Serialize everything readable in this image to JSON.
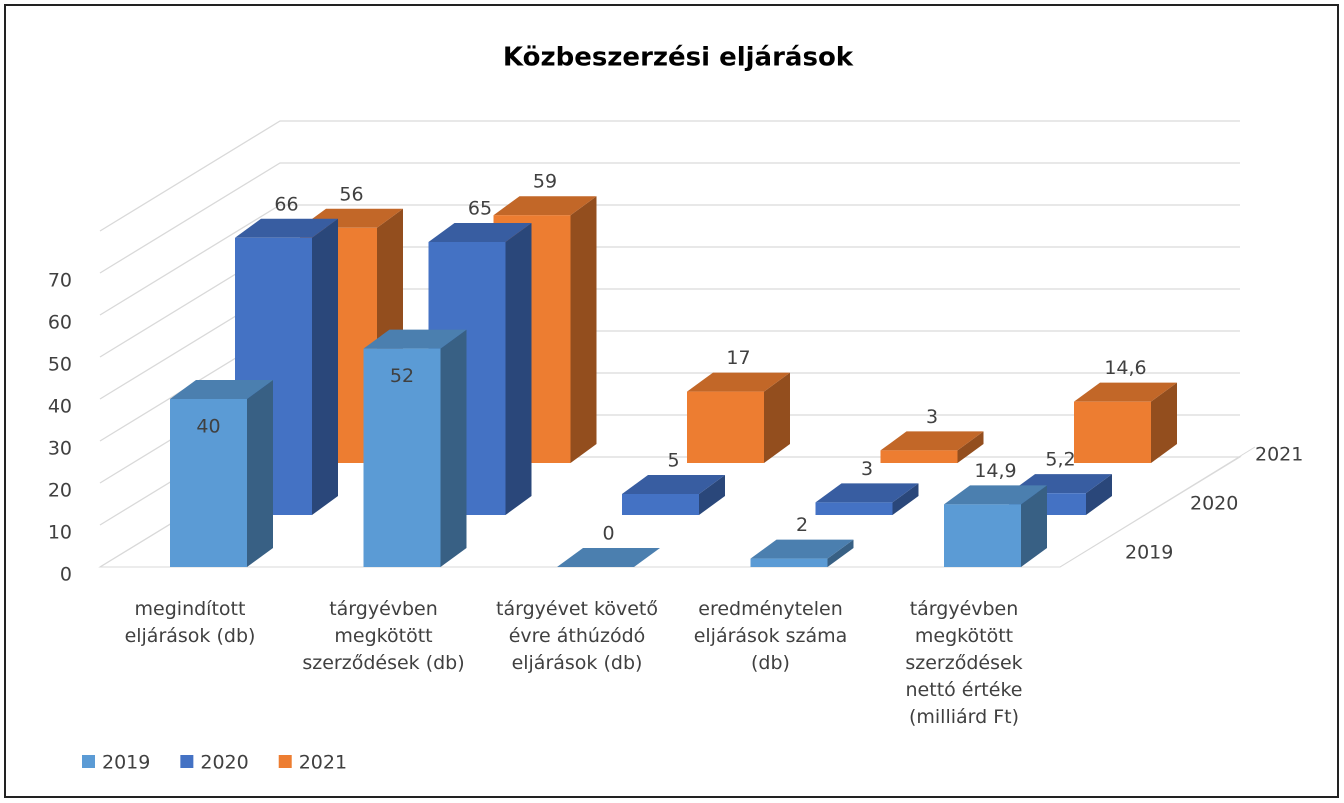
{
  "chart_data": {
    "type": "bar3d",
    "title": "Közbeszerzési eljárások",
    "categories": [
      "megindított eljárások (db)",
      "tárgyévben megkötött szerződések (db)",
      "tárgyévet követő évre áthúzódó eljárások (db)",
      "eredménytelen eljárások száma (db)",
      "tárgyévben megkötött szerződések nettó értéke (milliárd Ft)"
    ],
    "series": [
      {
        "name": "2019",
        "color": "#5b9bd5",
        "values": [
          40,
          52,
          0,
          2,
          14.9
        ],
        "value_labels": [
          "40",
          "52",
          "0",
          "2",
          "14,9"
        ]
      },
      {
        "name": "2020",
        "color": "#4472c4",
        "values": [
          66,
          65,
          5,
          3,
          5.2
        ],
        "value_labels": [
          "66",
          "65",
          "5",
          "3",
          "5,2"
        ]
      },
      {
        "name": "2021",
        "color": "#ed7d31",
        "values": [
          56,
          59,
          17,
          3,
          14.6
        ],
        "value_labels": [
          "56",
          "59",
          "17",
          "3",
          "14,6"
        ]
      }
    ],
    "ylim": [
      0,
      80
    ],
    "yticks": [
      0,
      10,
      20,
      30,
      40,
      50,
      60,
      70
    ],
    "grid": true,
    "legend": "bottom-left"
  }
}
